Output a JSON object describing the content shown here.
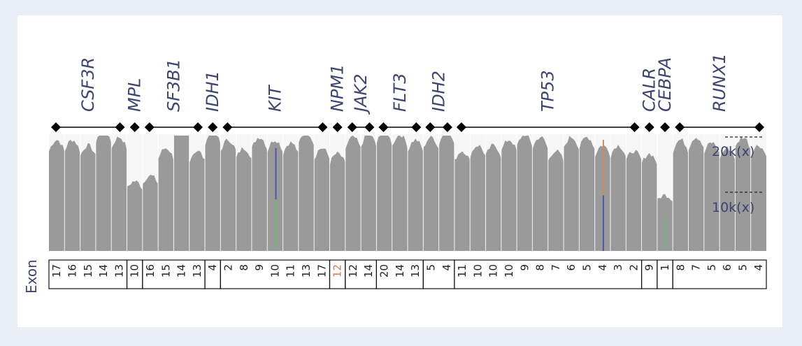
{
  "colors": {
    "page_bg": "#e9edf6",
    "card_bg": "#ffffff",
    "coverage_fill": "#9a9a9a",
    "plot_bg": "#f6f6f6",
    "gene_text": "#3d4470",
    "highlight": "#d1785b",
    "variant_blue": "#4a5aa8",
    "variant_green": "#78b478",
    "variant_orange": "#d08a5a"
  },
  "chart_data": {
    "type": "area",
    "title": "",
    "ylabel": "",
    "exon_axis_label": "Exon",
    "y_unit": "k(x)",
    "ylim_k": [
      0,
      30
    ],
    "reference_lines": [
      {
        "value_k": 20,
        "label": "20k(x)"
      },
      {
        "value_k": 10,
        "label": "10k(x)"
      }
    ],
    "genes": [
      {
        "name": "CSF3R",
        "exons": [
          "17",
          "16",
          "15",
          "14",
          "13"
        ],
        "highlight": false
      },
      {
        "name": "MPL",
        "exons": [
          "10"
        ],
        "highlight": false
      },
      {
        "name": "SF3B1",
        "exons": [
          "16",
          "15",
          "14",
          "13"
        ],
        "highlight": false
      },
      {
        "name": "IDH1",
        "exons": [
          "4"
        ],
        "highlight": false
      },
      {
        "name": "KIT",
        "exons": [
          "2",
          "8",
          "9",
          "10",
          "11",
          "13",
          "17"
        ],
        "highlight": false
      },
      {
        "name": "NPM1",
        "exons": [
          "12"
        ],
        "highlight": true
      },
      {
        "name": "JAK2",
        "exons": [
          "12",
          "14"
        ],
        "highlight": false
      },
      {
        "name": "FLT3",
        "exons": [
          "20",
          "14",
          "13"
        ],
        "highlight": false
      },
      {
        "name": "IDH2",
        "exons": [
          "5",
          "4"
        ],
        "highlight": false
      },
      {
        "name": "TP53",
        "exons": [
          "11",
          "10",
          "10",
          "10",
          "9",
          "8",
          "7",
          "6",
          "5",
          "4",
          "3",
          "2"
        ],
        "highlight": false
      },
      {
        "name": "CALR",
        "exons": [
          "9"
        ],
        "highlight": false
      },
      {
        "name": "CEBPA",
        "exons": [
          "1"
        ],
        "highlight": false
      },
      {
        "name": "RUNX1",
        "exons": [
          "8",
          "7",
          "5",
          "6",
          "5",
          "4"
        ],
        "highlight": false
      }
    ],
    "exon_coverage_k": [
      [
        19.5,
        19.5,
        18.5,
        21.5,
        20.0
      ],
      [
        12.0
      ],
      [
        13.0,
        18.0,
        24.5,
        17.5
      ],
      [
        21.0
      ],
      [
        19.5,
        18.0,
        20.0,
        19.5,
        19.0,
        21.0,
        18.0
      ],
      [
        17.0
      ],
      [
        20.0,
        20.5
      ],
      [
        21.0,
        20.5,
        19.5
      ],
      [
        20.0,
        21.0
      ],
      [
        17.5,
        18.5,
        18.5,
        19.5,
        20.5,
        20.0,
        17.5,
        20.0,
        20.0,
        18.5,
        18.5,
        17.5
      ],
      [
        17.0
      ],
      [
        9.5
      ],
      [
        19.5,
        20.0,
        19.0,
        18.0,
        20.0,
        18.5
      ]
    ],
    "variant_markers": [
      {
        "gene": "KIT",
        "exon": "10",
        "height_k": 18.0,
        "colors": [
          "variant_blue",
          "variant_green"
        ]
      },
      {
        "gene": "TP53",
        "exon": "4",
        "height_k": 19.5,
        "colors": [
          "variant_orange",
          "variant_blue"
        ]
      },
      {
        "gene": "CEBPA",
        "exon": "1",
        "height_k": 6.0,
        "colors": [
          "variant_green"
        ]
      }
    ]
  }
}
